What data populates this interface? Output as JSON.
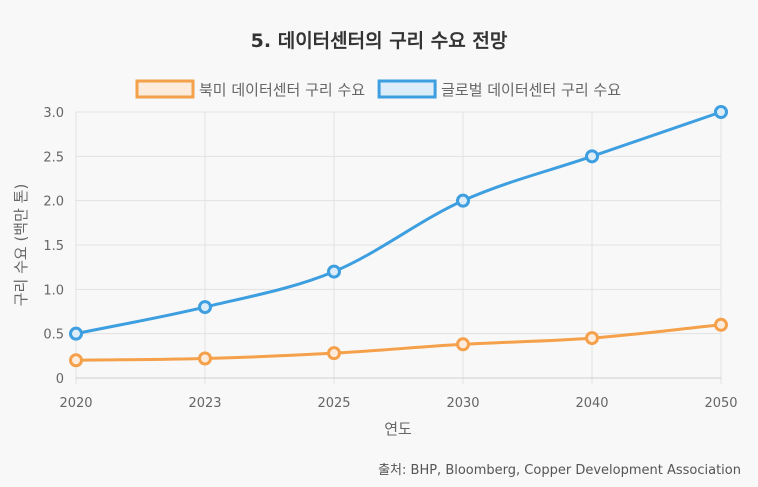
{
  "chart_data": {
    "type": "line",
    "title": "5. 데이터센터의 구리 수요 전망",
    "xlabel": "연도",
    "ylabel": "구리 수요 (백만 톤)",
    "categories": [
      "2020",
      "2023",
      "2025",
      "2030",
      "2040",
      "2050"
    ],
    "ylim": [
      0,
      3.0
    ],
    "yticks": [
      "0",
      "0.5",
      "1.0",
      "1.5",
      "2.0",
      "2.5",
      "3.0"
    ],
    "grid": true,
    "legend_position": "top",
    "series": [
      {
        "name": "북미 데이터센터 구리 수요",
        "values": [
          0.2,
          0.22,
          0.28,
          0.38,
          0.45,
          0.6
        ],
        "color": "#f5a04a",
        "fill": "#fdebdc"
      },
      {
        "name": "글로벌 데이터센터 구리 수요",
        "values": [
          0.5,
          0.8,
          1.2,
          2.0,
          2.5,
          3.0
        ],
        "color": "#3d9ee0",
        "fill": "#dcedf9"
      }
    ]
  },
  "source": "출처: BHP, Bloomberg, Copper Development Association"
}
